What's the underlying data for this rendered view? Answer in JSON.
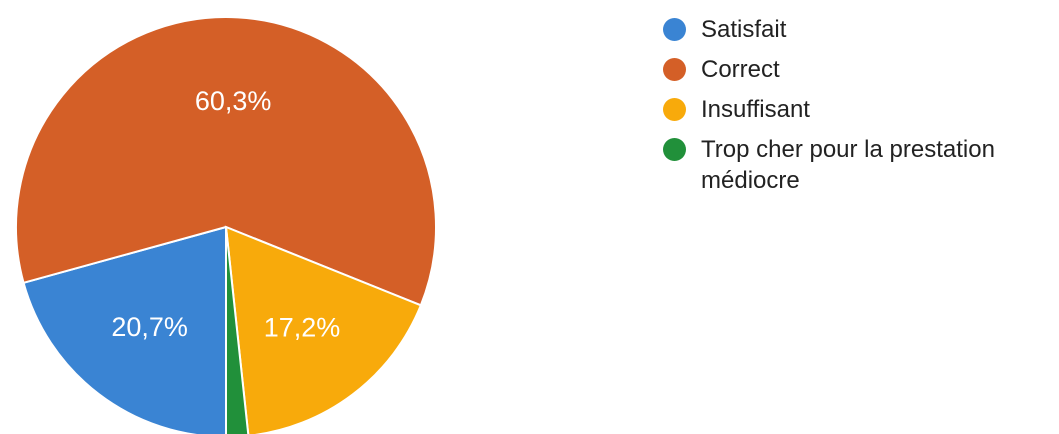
{
  "chart_data": {
    "type": "pie",
    "title": "",
    "categories": [
      "Satisfait",
      "Correct",
      "Insuffisant",
      "Trop cher pour la prestation médiocre"
    ],
    "values": [
      20.7,
      60.3,
      17.2,
      1.7
    ],
    "data_labels": [
      "20,7%",
      "60,3%",
      "17,2%",
      ""
    ],
    "colors": [
      "#3a84d3",
      "#d45f27",
      "#f8aa0b",
      "#21903a"
    ],
    "start_angle_deg": 90,
    "direction": "clockwise",
    "legend_position": "right"
  }
}
